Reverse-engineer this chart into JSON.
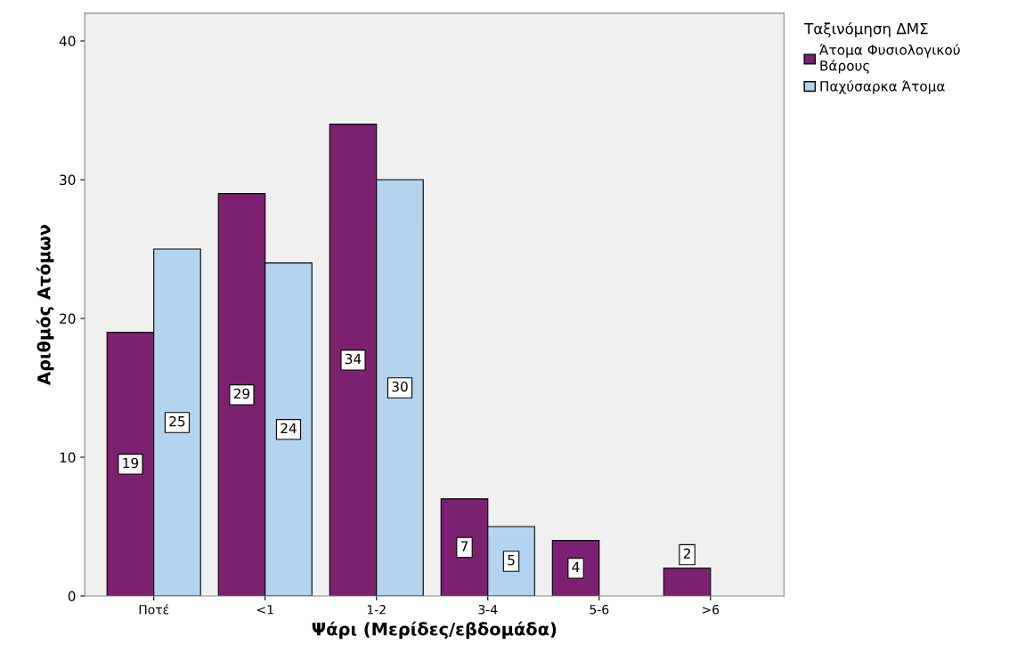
{
  "chart_data": {
    "type": "bar",
    "xlabel": "Ψάρι (Μερίδες/εβδομάδα)",
    "ylabel": "Αριθμός Ατόμων",
    "legend_title": "Ταξινόμηση ΔΜΣ",
    "legend": "top right",
    "categories": [
      "Ποτέ",
      "<1",
      "1-2",
      "3-4",
      "5-6",
      ">6"
    ],
    "series": [
      {
        "name": "Άτομα Φυσιολογικού\nΒάρους",
        "color": "#7b2170",
        "values": [
          19,
          29,
          34,
          7,
          4,
          2
        ]
      },
      {
        "name": "Παχύσαρκα Άτομα",
        "color": "#b3d4f0",
        "values": [
          25,
          24,
          30,
          5,
          null,
          null
        ]
      }
    ],
    "ylim": [
      0,
      42
    ],
    "yticks": [
      0,
      10,
      20,
      30,
      40
    ],
    "grid": false,
    "data_labels": true
  }
}
